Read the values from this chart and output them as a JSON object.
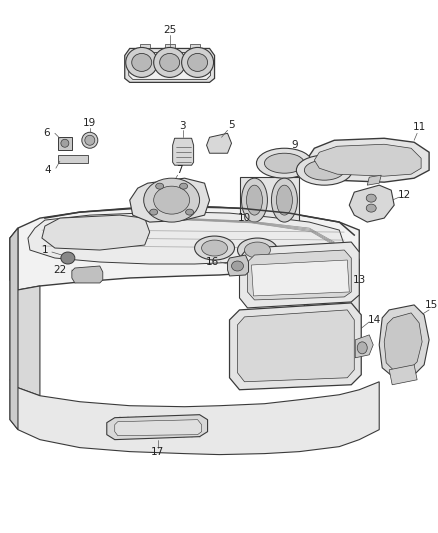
{
  "background_color": "#ffffff",
  "line_color": "#3a3a3a",
  "label_color": "#222222",
  "figsize": [
    4.38,
    5.33
  ],
  "dpi": 100,
  "label_fontsize": 7.5
}
